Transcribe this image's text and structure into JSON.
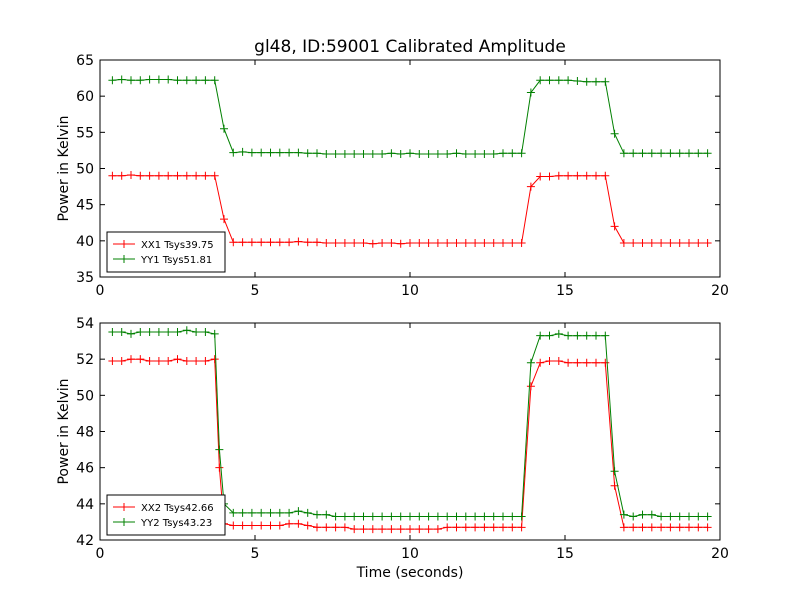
{
  "figure": {
    "title": "gl48, ID:59001 Calibrated Amplitude",
    "xlabel": "Time (seconds)"
  },
  "chart_data": [
    {
      "type": "line",
      "ylabel": "Power in Kelvin",
      "xlim": [
        0,
        20
      ],
      "ylim": [
        35,
        65
      ],
      "xticks": [
        0,
        5,
        10,
        15,
        20
      ],
      "yticks": [
        35,
        40,
        45,
        50,
        55,
        60,
        65
      ],
      "legend_position": "lower-left",
      "grid": false,
      "x": [
        0.4,
        0.7,
        1.0,
        1.3,
        1.6,
        1.9,
        2.2,
        2.5,
        2.8,
        3.1,
        3.4,
        3.7,
        4.0,
        4.3,
        4.6,
        4.9,
        5.2,
        5.5,
        5.8,
        6.1,
        6.4,
        6.7,
        7.0,
        7.3,
        7.6,
        7.9,
        8.2,
        8.5,
        8.8,
        9.1,
        9.4,
        9.7,
        10.0,
        10.3,
        10.6,
        10.9,
        11.2,
        11.5,
        11.8,
        12.1,
        12.4,
        12.7,
        13.0,
        13.3,
        13.6,
        13.9,
        14.2,
        14.5,
        14.8,
        15.1,
        15.4,
        15.7,
        16.0,
        16.3,
        16.6,
        16.9,
        17.2,
        17.5,
        17.8,
        18.1,
        18.4,
        18.7,
        19.0,
        19.3,
        19.6
      ],
      "series": [
        {
          "name": "XX1 Tsys39.75",
          "color": "#ff0000",
          "values": [
            49.0,
            49.0,
            49.1,
            49.0,
            49.0,
            49.0,
            49.0,
            49.0,
            49.0,
            49.0,
            49.0,
            49.0,
            43.0,
            39.8,
            39.8,
            39.8,
            39.8,
            39.8,
            39.8,
            39.8,
            39.9,
            39.8,
            39.8,
            39.7,
            39.7,
            39.7,
            39.7,
            39.7,
            39.6,
            39.7,
            39.7,
            39.6,
            39.7,
            39.7,
            39.7,
            39.7,
            39.7,
            39.7,
            39.7,
            39.7,
            39.7,
            39.7,
            39.7,
            39.7,
            39.7,
            47.5,
            48.9,
            48.9,
            49.0,
            49.0,
            49.0,
            49.0,
            49.0,
            49.0,
            42.0,
            39.7,
            39.7,
            39.7,
            39.7,
            39.7,
            39.7,
            39.7,
            39.7,
            39.7,
            39.7
          ]
        },
        {
          "name": "YY1 Tsys51.81",
          "color": "#008000",
          "values": [
            62.2,
            62.3,
            62.2,
            62.2,
            62.3,
            62.3,
            62.3,
            62.2,
            62.2,
            62.2,
            62.2,
            62.2,
            55.5,
            52.2,
            52.3,
            52.2,
            52.2,
            52.2,
            52.2,
            52.2,
            52.2,
            52.1,
            52.1,
            52.0,
            52.0,
            52.0,
            52.0,
            52.0,
            52.0,
            52.0,
            52.1,
            52.0,
            52.1,
            52.0,
            52.0,
            52.0,
            52.0,
            52.1,
            52.0,
            52.0,
            52.0,
            52.0,
            52.1,
            52.1,
            52.1,
            60.5,
            62.2,
            62.2,
            62.2,
            62.2,
            62.1,
            62.0,
            62.0,
            62.0,
            54.8,
            52.1,
            52.1,
            52.1,
            52.1,
            52.1,
            52.1,
            52.1,
            52.1,
            52.1,
            52.1
          ]
        }
      ]
    },
    {
      "type": "line",
      "ylabel": "Power in Kelvin",
      "xlim": [
        0,
        20
      ],
      "ylim": [
        42,
        54
      ],
      "xticks": [
        0,
        5,
        10,
        15,
        20
      ],
      "yticks": [
        42,
        44,
        46,
        48,
        50,
        52,
        54
      ],
      "legend_position": "lower-left",
      "grid": false,
      "x": [
        0.4,
        0.7,
        1.0,
        1.3,
        1.6,
        1.9,
        2.2,
        2.5,
        2.8,
        3.1,
        3.4,
        3.7,
        3.85,
        4.0,
        4.3,
        4.6,
        4.9,
        5.2,
        5.5,
        5.8,
        6.1,
        6.4,
        6.7,
        7.0,
        7.3,
        7.6,
        7.9,
        8.2,
        8.5,
        8.8,
        9.1,
        9.4,
        9.7,
        10.0,
        10.3,
        10.6,
        10.9,
        11.2,
        11.5,
        11.8,
        12.1,
        12.4,
        12.7,
        13.0,
        13.3,
        13.6,
        13.9,
        14.2,
        14.5,
        14.8,
        15.1,
        15.4,
        15.7,
        16.0,
        16.3,
        16.6,
        16.9,
        17.2,
        17.5,
        17.8,
        18.1,
        18.4,
        18.7,
        19.0,
        19.3,
        19.6
      ],
      "series": [
        {
          "name": "XX2 Tsys42.66",
          "color": "#ff0000",
          "values": [
            51.9,
            51.9,
            52.0,
            52.0,
            51.9,
            51.9,
            51.9,
            52.0,
            51.9,
            51.9,
            51.9,
            52.0,
            46.0,
            42.9,
            42.8,
            42.8,
            42.8,
            42.8,
            42.8,
            42.8,
            42.9,
            42.9,
            42.8,
            42.7,
            42.7,
            42.7,
            42.7,
            42.6,
            42.6,
            42.6,
            42.6,
            42.6,
            42.6,
            42.6,
            42.6,
            42.6,
            42.6,
            42.7,
            42.7,
            42.7,
            42.7,
            42.7,
            42.7,
            42.7,
            42.7,
            42.7,
            50.5,
            51.8,
            51.9,
            51.9,
            51.8,
            51.8,
            51.8,
            51.8,
            51.8,
            45.0,
            42.7,
            42.7,
            42.7,
            42.7,
            42.7,
            42.7,
            42.7,
            42.7,
            42.7,
            42.7
          ]
        },
        {
          "name": "YY2 Tsys43.23",
          "color": "#008000",
          "values": [
            53.5,
            53.5,
            53.4,
            53.5,
            53.5,
            53.5,
            53.5,
            53.5,
            53.6,
            53.5,
            53.5,
            53.4,
            47.0,
            44.0,
            43.5,
            43.5,
            43.5,
            43.5,
            43.5,
            43.5,
            43.5,
            43.6,
            43.5,
            43.4,
            43.4,
            43.3,
            43.3,
            43.3,
            43.3,
            43.3,
            43.3,
            43.3,
            43.3,
            43.3,
            43.3,
            43.3,
            43.3,
            43.3,
            43.3,
            43.3,
            43.3,
            43.3,
            43.3,
            43.3,
            43.3,
            43.3,
            51.8,
            53.3,
            53.3,
            53.4,
            53.3,
            53.3,
            53.3,
            53.3,
            53.3,
            45.8,
            43.4,
            43.3,
            43.4,
            43.4,
            43.3,
            43.3,
            43.3,
            43.3,
            43.3,
            43.3
          ]
        }
      ]
    }
  ]
}
